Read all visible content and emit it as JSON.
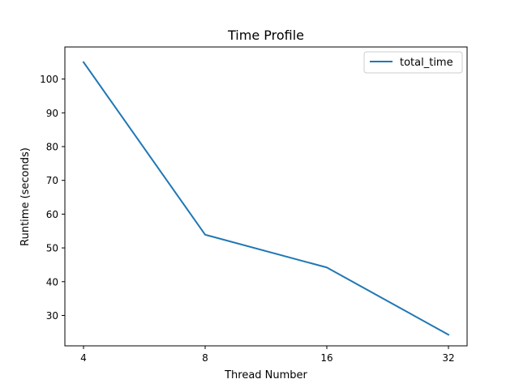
{
  "chart_data": {
    "type": "line",
    "title": "Time Profile",
    "xlabel": "Thread Number",
    "ylabel": "Runtime (seconds)",
    "categories": [
      "4",
      "8",
      "16",
      "32"
    ],
    "series": [
      {
        "name": "total_time",
        "values": [
          105.0,
          53.9,
          44.2,
          24.3
        ],
        "color": "#1f77b4"
      }
    ],
    "ylim": [
      21.0,
      109.5
    ],
    "yticks": [
      30,
      40,
      50,
      60,
      70,
      80,
      90,
      100
    ],
    "grid": false,
    "legend": "top-right"
  }
}
